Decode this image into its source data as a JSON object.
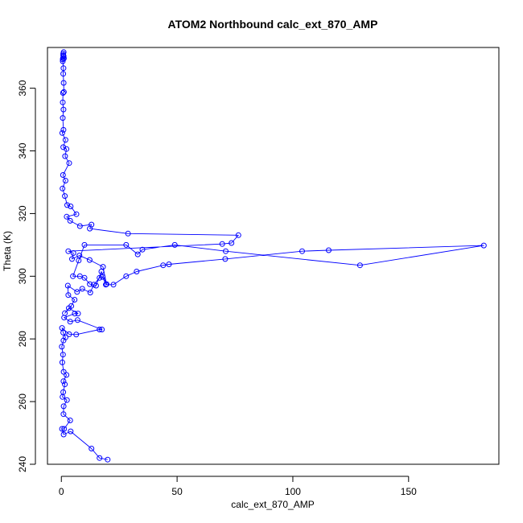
{
  "chart_data": {
    "type": "line",
    "title": "ATOM2 Northbound calc_ext_870_AMP",
    "xlabel": "calc_ext_870_AMP",
    "ylabel": "Theta (K)",
    "xlim": [
      -6,
      189
    ],
    "ylim": [
      240,
      373
    ],
    "xticks": [
      0,
      50,
      100,
      150
    ],
    "yticks": [
      240,
      260,
      280,
      300,
      320,
      340,
      360
    ],
    "grid": false,
    "marker": "open-circle",
    "color": "#0000ff",
    "series": [
      {
        "name": "calc_ext_870_AMP",
        "points": [
          [
            20,
            241.5
          ],
          [
            16.5,
            242
          ],
          [
            13,
            245
          ],
          [
            4,
            250.5
          ],
          [
            1,
            249.5
          ],
          [
            0.3,
            251.3
          ],
          [
            1.2,
            251.3
          ],
          [
            3.8,
            254
          ],
          [
            0.9,
            256
          ],
          [
            1,
            258.5
          ],
          [
            2.4,
            260.5
          ],
          [
            0.5,
            261.5
          ],
          [
            0.8,
            263
          ],
          [
            1.5,
            265.5
          ],
          [
            0.9,
            266.5
          ],
          [
            2.2,
            268.5
          ],
          [
            1,
            269.5
          ],
          [
            0.4,
            272.5
          ],
          [
            0.7,
            275
          ],
          [
            0.2,
            277.5
          ],
          [
            0.9,
            279.5
          ],
          [
            1.8,
            280.5
          ],
          [
            0.8,
            282
          ],
          [
            0.3,
            283.5
          ],
          [
            3.4,
            281.5
          ],
          [
            6.4,
            281.4
          ],
          [
            16.5,
            283
          ],
          [
            17.5,
            283
          ],
          [
            7,
            286
          ],
          [
            3.8,
            285.5
          ],
          [
            1.2,
            286.8
          ],
          [
            5.8,
            288.1
          ],
          [
            7.2,
            288.1
          ],
          [
            3.2,
            289.8
          ],
          [
            1.5,
            288.2
          ],
          [
            4.3,
            290.5
          ],
          [
            5.7,
            292.5
          ],
          [
            3,
            294
          ],
          [
            2.8,
            297
          ],
          [
            6.8,
            295
          ],
          [
            9,
            296
          ],
          [
            12.5,
            294.8
          ],
          [
            14,
            297.3
          ],
          [
            16.5,
            299.5
          ],
          [
            17.8,
            299.8
          ],
          [
            19.2,
            297.3
          ],
          [
            22.5,
            297.3
          ],
          [
            28,
            300
          ],
          [
            32.5,
            301.5
          ],
          [
            44,
            303.5
          ],
          [
            46.5,
            303.8
          ],
          [
            70.8,
            305.5
          ],
          [
            104,
            308
          ],
          [
            115.5,
            308.3
          ],
          [
            182.5,
            309.8
          ],
          [
            129,
            303.5
          ],
          [
            71,
            308
          ],
          [
            49,
            310
          ],
          [
            35,
            308.5
          ],
          [
            33,
            307
          ],
          [
            28,
            310
          ],
          [
            10,
            310
          ],
          [
            7.5,
            305
          ],
          [
            5,
            300
          ],
          [
            8,
            300
          ],
          [
            10,
            299.5
          ],
          [
            12.3,
            297.5
          ],
          [
            15,
            297
          ],
          [
            17.3,
            301.5
          ],
          [
            19.5,
            297.5
          ],
          [
            18,
            303
          ],
          [
            12.2,
            305.2
          ],
          [
            7.8,
            306.6
          ],
          [
            4.6,
            305.5
          ],
          [
            5.2,
            307.4
          ],
          [
            3,
            308
          ],
          [
            69.5,
            310.3
          ],
          [
            73.5,
            310.6
          ],
          [
            76.5,
            313.1
          ],
          [
            28.8,
            313.6
          ],
          [
            12.3,
            315.2
          ],
          [
            13,
            316.5
          ],
          [
            8,
            316
          ],
          [
            3.8,
            317.7
          ],
          [
            2.3,
            319
          ],
          [
            6.5,
            319.8
          ],
          [
            4,
            322.3
          ],
          [
            2.5,
            322.7
          ],
          [
            1.5,
            325.6
          ],
          [
            0.5,
            328
          ],
          [
            1.8,
            330.5
          ],
          [
            0.7,
            332.3
          ],
          [
            3.4,
            336.1
          ],
          [
            1.6,
            338.3
          ],
          [
            2.2,
            340.6
          ],
          [
            0.8,
            341.2
          ],
          [
            1.8,
            343.5
          ],
          [
            0.4,
            345.7
          ],
          [
            0.9,
            346.7
          ],
          [
            0.6,
            350.5
          ],
          [
            0.9,
            353.2
          ],
          [
            0.6,
            355.5
          ],
          [
            0.7,
            358.5
          ],
          [
            1.1,
            358.8
          ],
          [
            1,
            361.7
          ],
          [
            0.8,
            364.6
          ],
          [
            0.9,
            366.4
          ],
          [
            0.6,
            368.6
          ],
          [
            0.7,
            369.6
          ],
          [
            1,
            370.2
          ],
          [
            0.8,
            371
          ],
          [
            1,
            371.5
          ],
          [
            0.8,
            370.5
          ],
          [
            1.1,
            369.5
          ],
          [
            0.6,
            369.2
          ]
        ]
      }
    ]
  }
}
